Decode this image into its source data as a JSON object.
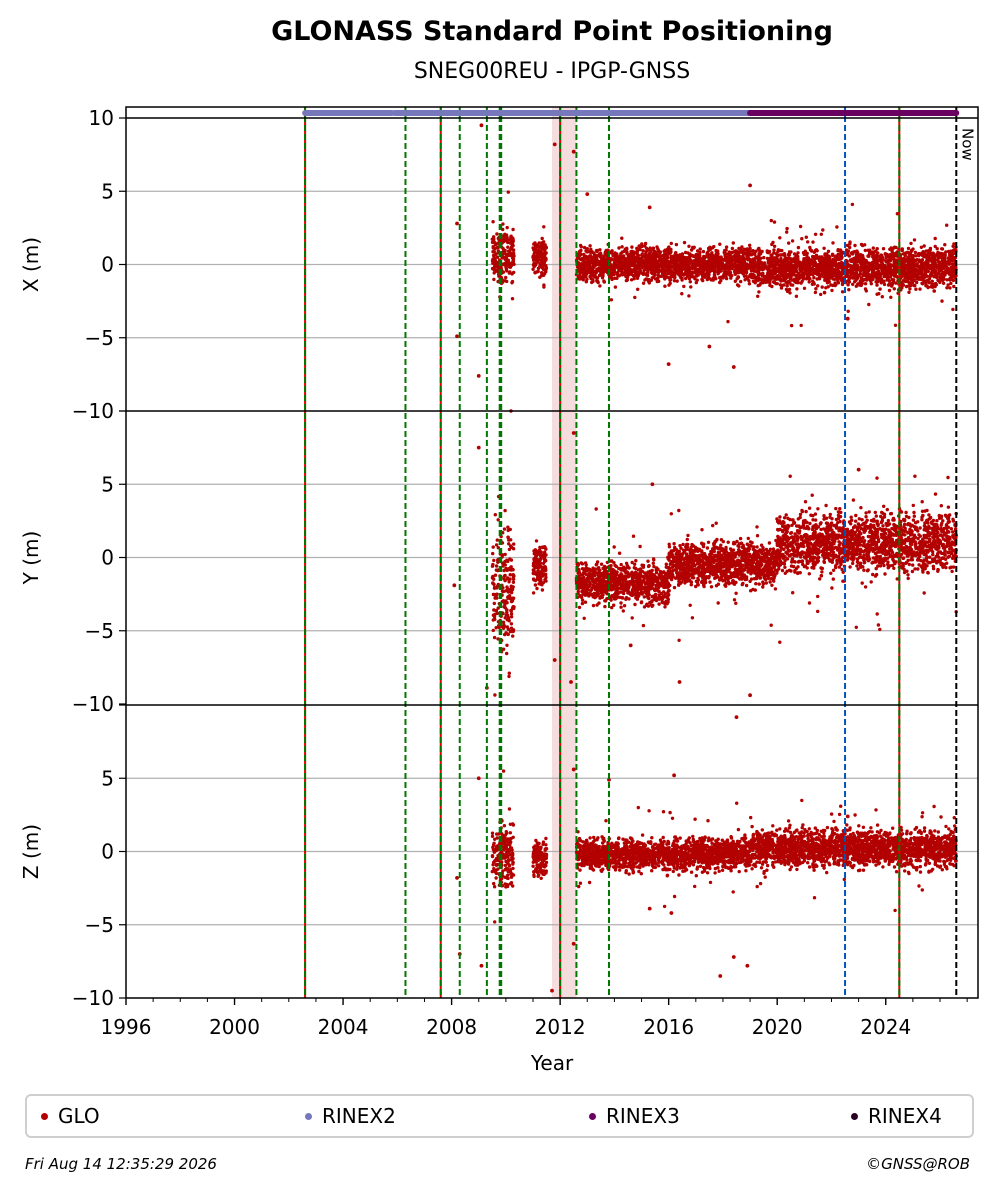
{
  "header": {
    "title": "GLONASS Standard Point Positioning",
    "subtitle": "SNEG00REU - IPGP-GNSS"
  },
  "footer": {
    "timestamp": "Fri Aug 14 12:35:29 2026",
    "copyright": "©GNSS@ROB"
  },
  "legend": [
    {
      "label": "GLO",
      "color": "#b30000"
    },
    {
      "label": "RINEX2",
      "color": "#7777bb"
    },
    {
      "label": "RINEX3",
      "color": "#6a005f"
    },
    {
      "label": "RINEX4",
      "color": "#2a0022"
    }
  ],
  "colors": {
    "data": "#b30000",
    "rinex2": "#7777bb",
    "rinex3": "#6a005f",
    "event_red": "#dd0000",
    "event_green": "#007700",
    "event_blue": "#0055bb",
    "now": "#000000",
    "shade": "#f2d4d4",
    "grid": "#b0b0b0"
  },
  "chart_data": {
    "type": "scatter",
    "xlabel": "Year",
    "xlim": [
      1996,
      2027.4
    ],
    "x_ticks": [
      1996,
      2000,
      2004,
      2008,
      2012,
      2016,
      2020,
      2024
    ],
    "now_label": "Now",
    "now_year": 2026.6,
    "panels": [
      {
        "ylabel": "X (m)",
        "ylim": [
          -10,
          10
        ],
        "y_ticks": [
          -10,
          -5,
          0,
          5,
          10
        ],
        "typical": [
          {
            "from": 2009.5,
            "to": 2010.3,
            "center": 0.5,
            "spread": 1.5
          },
          {
            "from": 2011.0,
            "to": 2011.5,
            "center": 0.5,
            "spread": 1.0
          },
          {
            "from": 2012.6,
            "to": 2019.0,
            "center": 0.0,
            "spread": 1.0
          },
          {
            "from": 2019.0,
            "to": 2026.6,
            "center": -0.2,
            "spread": 1.2
          }
        ]
      },
      {
        "ylabel": "Y (m)",
        "ylim": [
          -10,
          10
        ],
        "y_ticks": [
          -10,
          -5,
          0,
          5
        ],
        "typical": [
          {
            "from": 2009.5,
            "to": 2010.3,
            "center": -2.0,
            "spread": 4.0
          },
          {
            "from": 2011.0,
            "to": 2011.5,
            "center": -0.5,
            "spread": 1.5
          },
          {
            "from": 2012.6,
            "to": 2016.0,
            "center": -1.8,
            "spread": 1.2
          },
          {
            "from": 2016.0,
            "to": 2020.0,
            "center": -0.5,
            "spread": 1.3
          },
          {
            "from": 2020.0,
            "to": 2026.6,
            "center": 1.0,
            "spread": 1.8
          }
        ]
      },
      {
        "ylabel": "Z (m)",
        "ylim": [
          -10,
          10
        ],
        "y_ticks": [
          -10,
          -5,
          0,
          5
        ],
        "typical": [
          {
            "from": 2009.5,
            "to": 2010.3,
            "center": -0.5,
            "spread": 2.0
          },
          {
            "from": 2011.0,
            "to": 2011.5,
            "center": -0.5,
            "spread": 1.0
          },
          {
            "from": 2012.6,
            "to": 2019.0,
            "center": -0.2,
            "spread": 0.9
          },
          {
            "from": 2019.0,
            "to": 2026.6,
            "center": 0.2,
            "spread": 1.1
          }
        ]
      }
    ],
    "event_lines": [
      {
        "year": 2002.6,
        "color": "red-green"
      },
      {
        "year": 2006.3,
        "color": "green"
      },
      {
        "year": 2007.6,
        "color": "red-green"
      },
      {
        "year": 2008.3,
        "color": "green"
      },
      {
        "year": 2009.3,
        "color": "green"
      },
      {
        "year": 2009.8,
        "color": "green-thick"
      },
      {
        "year": 2012.0,
        "color": "red-green"
      },
      {
        "year": 2012.6,
        "color": "green"
      },
      {
        "year": 2013.8,
        "color": "green"
      },
      {
        "year": 2022.5,
        "color": "blue"
      },
      {
        "year": 2024.5,
        "color": "red-green"
      }
    ],
    "shaded_ranges": [
      [
        2011.7,
        2012.6
      ]
    ],
    "rinex_bars": [
      {
        "label": "RINEX2",
        "from": 2002.6,
        "to": 2005.8
      },
      {
        "label": "RINEX2",
        "from": 2005.9,
        "to": 2019.0
      },
      {
        "label": "RINEX3",
        "from": 2019.0,
        "to": 2026.6
      }
    ],
    "outliers": [
      {
        "panel": 0,
        "year": 2018.4,
        "value": -7.0
      },
      {
        "panel": 0,
        "year": 2019.0,
        "value": 5.4
      },
      {
        "panel": 0,
        "year": 2016.0,
        "value": -6.8
      },
      {
        "panel": 0,
        "year": 2017.5,
        "value": -5.6
      },
      {
        "panel": 0,
        "year": 2008.2,
        "value": 2.8
      },
      {
        "panel": 0,
        "year": 2008.2,
        "value": -4.9
      },
      {
        "panel": 0,
        "year": 2009.0,
        "value": -7.6
      },
      {
        "panel": 0,
        "year": 2009.1,
        "value": 9.5
      },
      {
        "panel": 0,
        "year": 2011.8,
        "value": 8.2
      },
      {
        "panel": 0,
        "year": 2012.5,
        "value": 7.7
      },
      {
        "panel": 0,
        "year": 2013.0,
        "value": 4.8
      },
      {
        "panel": 0,
        "year": 2015.3,
        "value": 3.9
      },
      {
        "panel": 0,
        "year": 2022.6,
        "value": -3.7
      },
      {
        "panel": 1,
        "year": 2019.0,
        "value": -9.4
      },
      {
        "panel": 1,
        "year": 2018.5,
        "value": -10.9
      },
      {
        "panel": 1,
        "year": 2016.4,
        "value": -8.5
      },
      {
        "panel": 1,
        "year": 2015.4,
        "value": 5.0
      },
      {
        "panel": 1,
        "year": 2023.0,
        "value": 6.0
      },
      {
        "panel": 1,
        "year": 2008.1,
        "value": -1.9
      },
      {
        "panel": 1,
        "year": 2009.0,
        "value": 7.5
      },
      {
        "panel": 1,
        "year": 2009.3,
        "value": -8.9
      },
      {
        "panel": 1,
        "year": 2009.8,
        "value": 6.5
      },
      {
        "panel": 1,
        "year": 2011.8,
        "value": -7.0
      },
      {
        "panel": 1,
        "year": 2012.4,
        "value": -8.5
      },
      {
        "panel": 1,
        "year": 2012.5,
        "value": 8.5
      },
      {
        "panel": 1,
        "year": 2014.6,
        "value": -6.0
      },
      {
        "panel": 2,
        "year": 2017.9,
        "value": -8.5
      },
      {
        "panel": 2,
        "year": 2018.4,
        "value": -7.2
      },
      {
        "panel": 2,
        "year": 2018.9,
        "value": -7.8
      },
      {
        "panel": 2,
        "year": 2016.2,
        "value": 5.2
      },
      {
        "panel": 2,
        "year": 2015.3,
        "value": -3.9
      },
      {
        "panel": 2,
        "year": 2016.1,
        "value": -4.2
      },
      {
        "panel": 2,
        "year": 2008.2,
        "value": -1.8
      },
      {
        "panel": 2,
        "year": 2008.3,
        "value": -7.0
      },
      {
        "panel": 2,
        "year": 2009.1,
        "value": -7.8
      },
      {
        "panel": 2,
        "year": 2009.0,
        "value": 5.0
      },
      {
        "panel": 2,
        "year": 2011.7,
        "value": -9.5
      },
      {
        "panel": 2,
        "year": 2012.5,
        "value": -6.3
      },
      {
        "panel": 2,
        "year": 2012.5,
        "value": 5.6
      },
      {
        "panel": 2,
        "year": 2013.8,
        "value": 4.9
      },
      {
        "panel": 2,
        "year": 2022.6,
        "value": 2.4
      }
    ]
  }
}
